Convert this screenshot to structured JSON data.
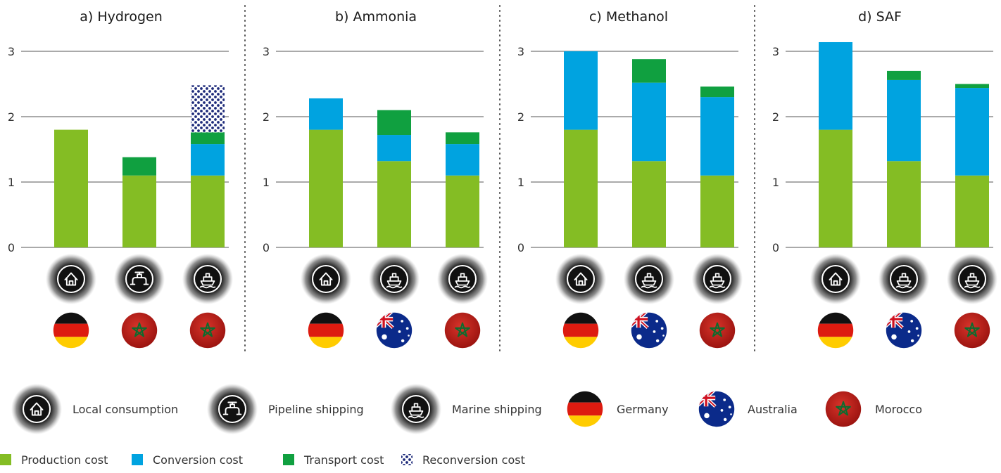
{
  "chart_data": {
    "type": "bar",
    "stacked": true,
    "ylim": [
      0,
      3
    ],
    "yticks": [
      0,
      1,
      2,
      3
    ],
    "grid": true,
    "legend_position": "bottom-left",
    "colors": {
      "Production cost": "#84bd24",
      "Conversion cost": "#00a3e0",
      "Transport cost": "#10a040",
      "Reconversion cost": "#1d2a7a"
    },
    "panels": [
      {
        "title": "a)  Hydrogen",
        "bars": [
          {
            "mode": "Local consumption",
            "country": "Germany",
            "values": {
              "Production cost": 1.8,
              "Conversion cost": 0,
              "Transport cost": 0,
              "Reconversion cost": 0
            }
          },
          {
            "mode": "Pipeline shipping",
            "country": "Morocco",
            "values": {
              "Production cost": 1.1,
              "Conversion cost": 0,
              "Transport cost": 0.28,
              "Reconversion cost": 0
            }
          },
          {
            "mode": "Marine shipping",
            "country": "Morocco",
            "values": {
              "Production cost": 1.1,
              "Conversion cost": 0.48,
              "Transport cost": 0.18,
              "Reconversion cost": 0.72
            }
          }
        ]
      },
      {
        "title": "b)  Ammonia",
        "bars": [
          {
            "mode": "Local consumption",
            "country": "Germany",
            "values": {
              "Production cost": 1.8,
              "Conversion cost": 0.48,
              "Transport cost": 0,
              "Reconversion cost": 0
            }
          },
          {
            "mode": "Marine shipping",
            "country": "Australia",
            "values": {
              "Production cost": 1.32,
              "Conversion cost": 0.4,
              "Transport cost": 0.38,
              "Reconversion cost": 0
            }
          },
          {
            "mode": "Marine shipping",
            "country": "Morocco",
            "values": {
              "Production cost": 1.1,
              "Conversion cost": 0.48,
              "Transport cost": 0.18,
              "Reconversion cost": 0
            }
          }
        ]
      },
      {
        "title": "c)  Methanol",
        "bars": [
          {
            "mode": "Local consumption",
            "country": "Germany",
            "values": {
              "Production cost": 1.8,
              "Conversion cost": 1.2,
              "Transport cost": 0,
              "Reconversion cost": 0
            }
          },
          {
            "mode": "Marine shipping",
            "country": "Australia",
            "values": {
              "Production cost": 1.32,
              "Conversion cost": 1.2,
              "Transport cost": 0.36,
              "Reconversion cost": 0
            }
          },
          {
            "mode": "Marine shipping",
            "country": "Morocco",
            "values": {
              "Production cost": 1.1,
              "Conversion cost": 1.2,
              "Transport cost": 0.16,
              "Reconversion cost": 0
            }
          }
        ]
      },
      {
        "title": "d)  SAF",
        "bars": [
          {
            "mode": "Local consumption",
            "country": "Germany",
            "values": {
              "Production cost": 1.8,
              "Conversion cost": 1.34,
              "Transport cost": 0,
              "Reconversion cost": 0
            }
          },
          {
            "mode": "Marine shipping",
            "country": "Australia",
            "values": {
              "Production cost": 1.32,
              "Conversion cost": 1.24,
              "Transport cost": 0.14,
              "Reconversion cost": 0
            }
          },
          {
            "mode": "Marine shipping",
            "country": "Morocco",
            "values": {
              "Production cost": 1.1,
              "Conversion cost": 1.34,
              "Transport cost": 0.06,
              "Reconversion cost": 0
            }
          }
        ]
      }
    ]
  },
  "legend": {
    "modes": [
      {
        "label": "Local consumption",
        "icon": "house-icon"
      },
      {
        "label": "Pipeline shipping",
        "icon": "pipeline-icon"
      },
      {
        "label": "Marine shipping",
        "icon": "ship-icon"
      }
    ],
    "countries": [
      {
        "label": "Germany",
        "icon": "germany-flag-icon"
      },
      {
        "label": "Australia",
        "icon": "australia-flag-icon"
      },
      {
        "label": "Morocco",
        "icon": "morocco-flag-icon"
      }
    ],
    "costs": [
      {
        "label": "Production cost",
        "color": "#84bd24",
        "pattern": false
      },
      {
        "label": "Conversion cost",
        "color": "#00a3e0",
        "pattern": false
      },
      {
        "label": "Transport cost",
        "color": "#10a040",
        "pattern": false
      },
      {
        "label": "Reconversion cost",
        "color": "#1d2a7a",
        "pattern": true
      }
    ]
  }
}
